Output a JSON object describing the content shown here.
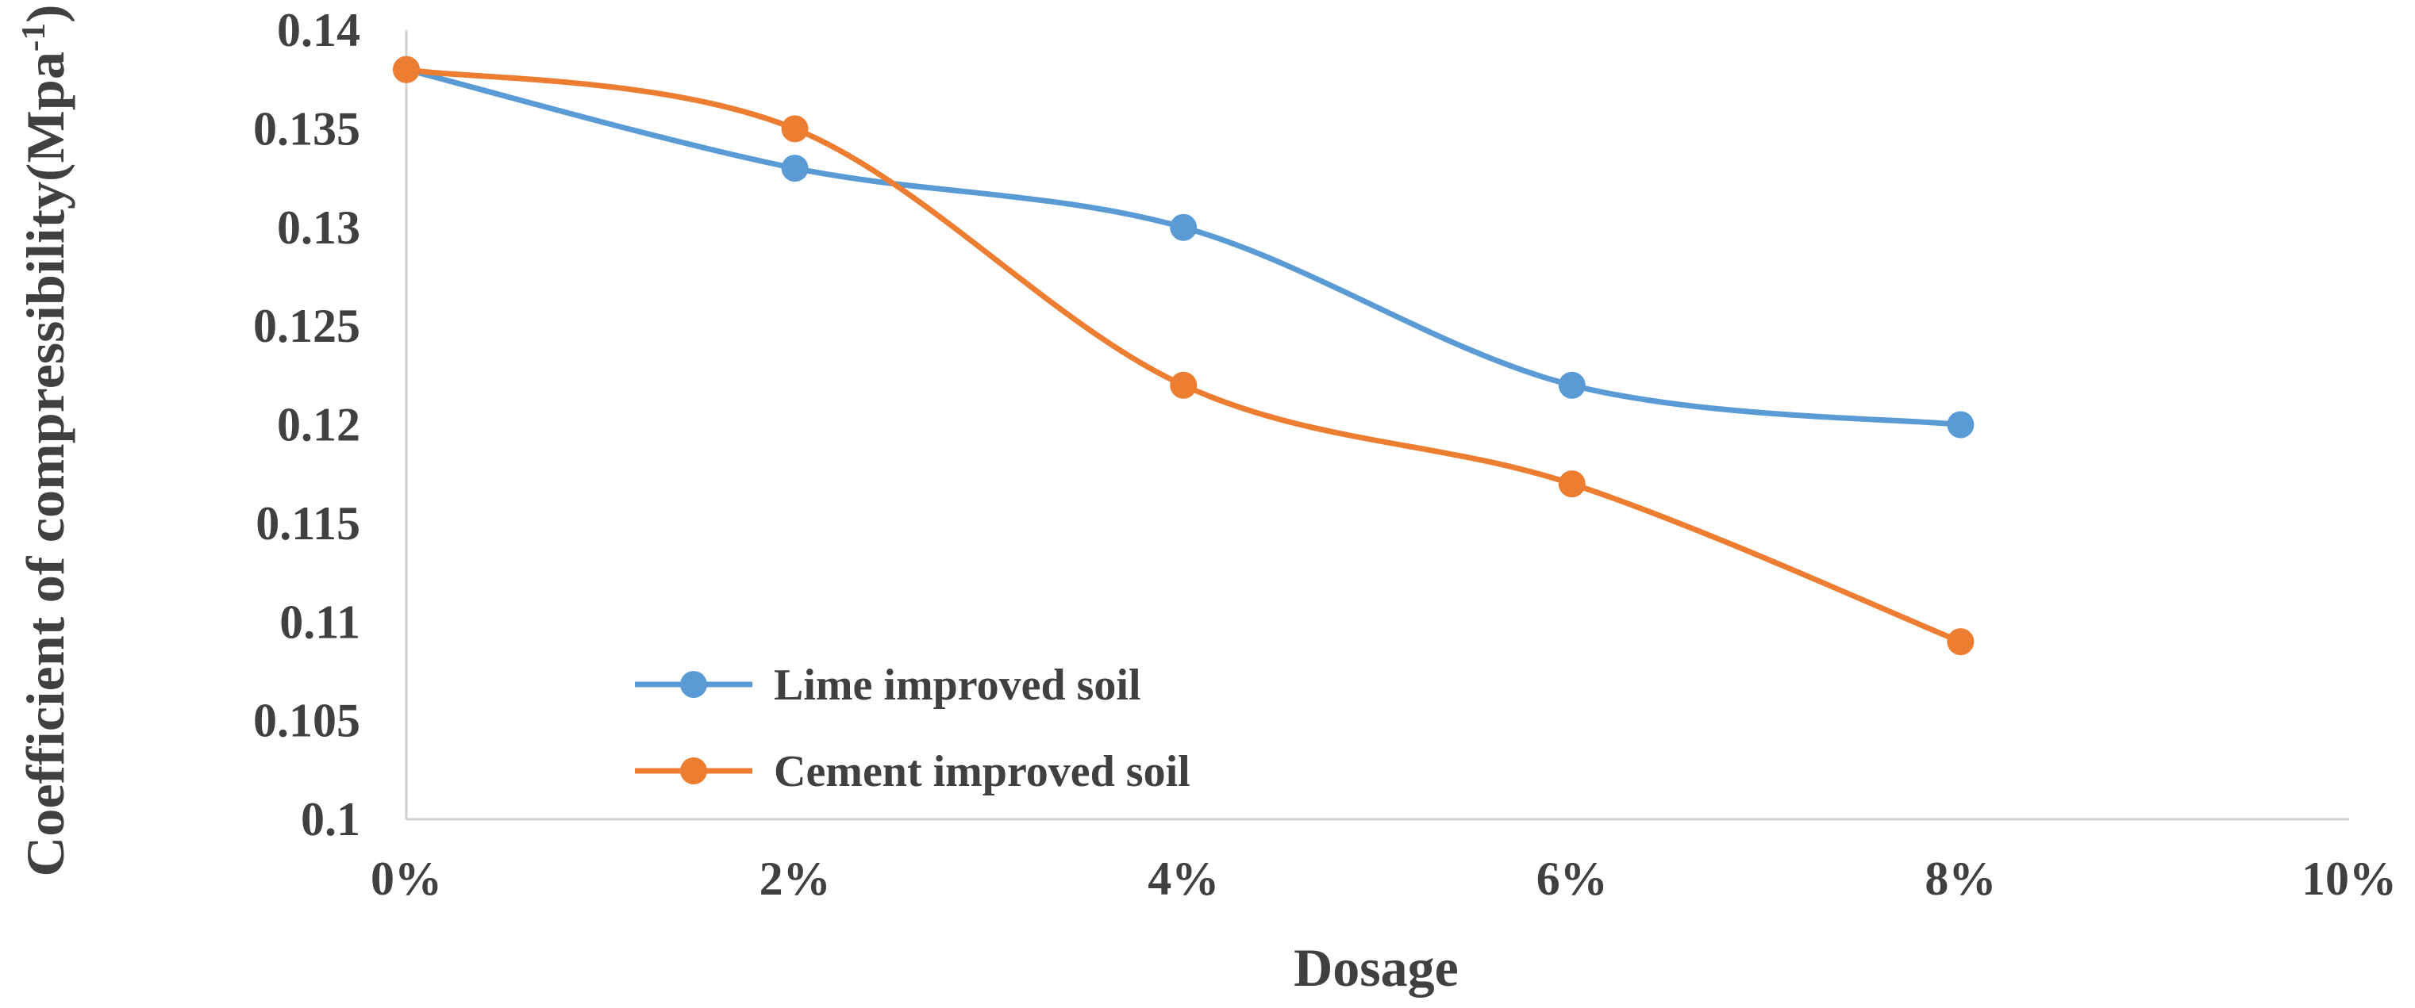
{
  "chart_data": {
    "type": "line",
    "title": "",
    "xlabel": "Dosage",
    "ylabel_main": "Coefficient of compressibility(Mpa",
    "ylabel_sup": "-1",
    "ylabel_close": ")",
    "x": [
      0,
      2,
      4,
      6,
      8
    ],
    "xlim": [
      0,
      10
    ],
    "x_ticks": [
      0,
      2,
      4,
      6,
      8,
      10
    ],
    "x_tick_labels": [
      "0%",
      "2%",
      "4%",
      "6%",
      "8%",
      "10%"
    ],
    "ylim": [
      0.1,
      0.14
    ],
    "y_ticks": [
      0.1,
      0.105,
      0.11,
      0.115,
      0.12,
      0.125,
      0.13,
      0.135,
      0.14
    ],
    "y_tick_labels": [
      "0.1",
      "0.105",
      "0.11",
      "0.115",
      "0.12",
      "0.125",
      "0.13",
      "0.135",
      "0.14"
    ],
    "grid": false,
    "smooth": true,
    "legend_position": "lower-left",
    "series": [
      {
        "name": "Lime improved soil",
        "color": "#5b9bd5",
        "values": [
          0.138,
          0.133,
          0.13,
          0.122,
          0.12
        ]
      },
      {
        "name": "Cement improved soil",
        "color": "#ed7d31",
        "values": [
          0.138,
          0.135,
          0.122,
          0.117,
          0.109
        ]
      }
    ]
  }
}
